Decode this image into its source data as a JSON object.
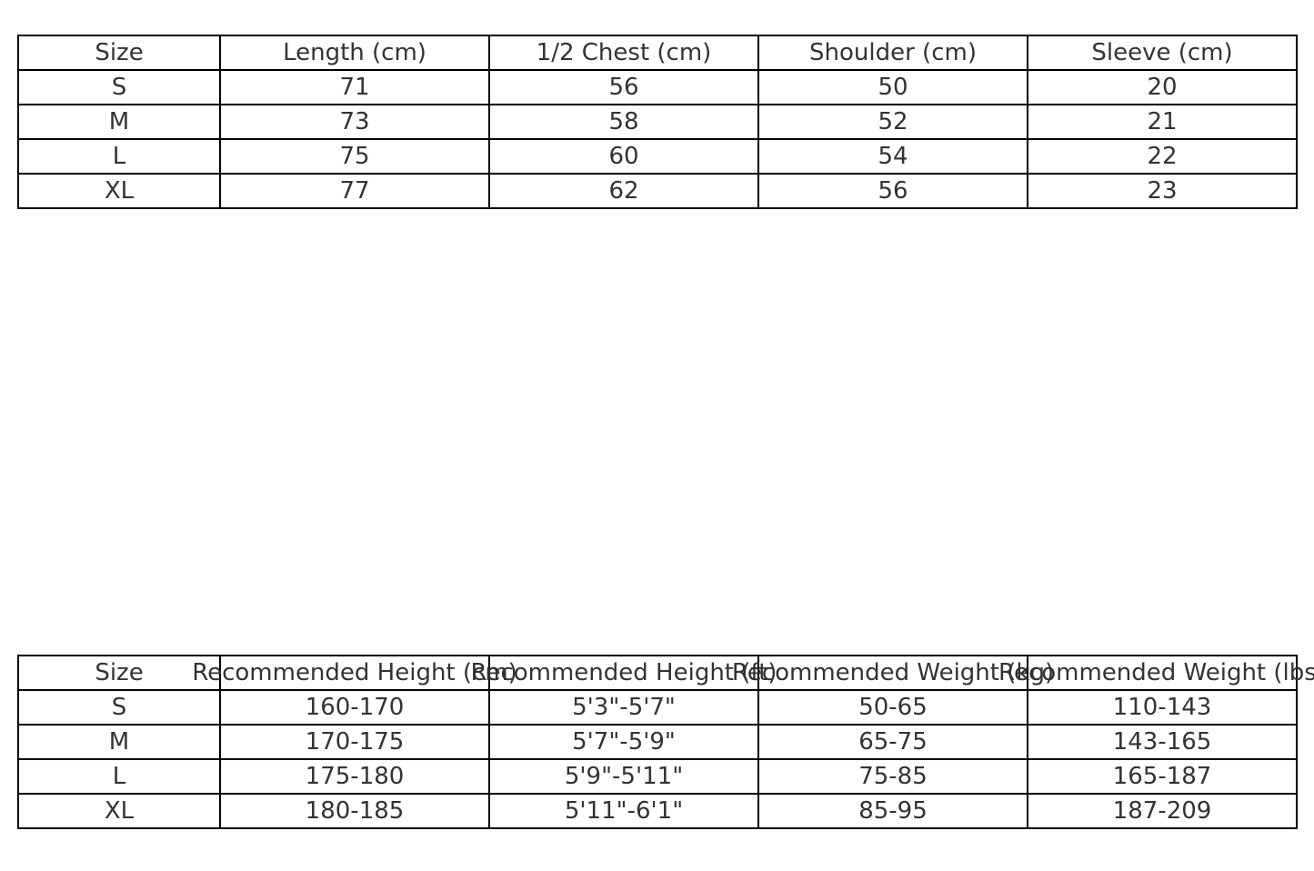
{
  "tables": [
    {
      "headers": [
        "Size",
        "Length (cm)",
        "1/2 Chest (cm)",
        "Shoulder (cm)",
        "Sleeve (cm)"
      ],
      "rows": [
        [
          "S",
          "71",
          "56",
          "50",
          "20"
        ],
        [
          "M",
          "73",
          "58",
          "52",
          "21"
        ],
        [
          "L",
          "75",
          "60",
          "54",
          "22"
        ],
        [
          "XL",
          "77",
          "62",
          "56",
          "23"
        ]
      ]
    },
    {
      "headers": [
        "Size",
        "Recommended Height (cm)",
        "Recommended Height (ft)",
        "Recommended Weight (kg)",
        "Recommended Weight (lbs)"
      ],
      "rows": [
        [
          "S",
          "160-170",
          "5'3\"-5'7\"",
          "50-65",
          "110-143"
        ],
        [
          "M",
          "170-175",
          "5'7\"-5'9\"",
          "65-75",
          "143-165"
        ],
        [
          "L",
          "175-180",
          "5'9\"-5'11\"",
          "75-85",
          "165-187"
        ],
        [
          "XL",
          "180-185",
          "5'11\"-6'1\"",
          "85-95",
          "187-209"
        ]
      ]
    }
  ]
}
